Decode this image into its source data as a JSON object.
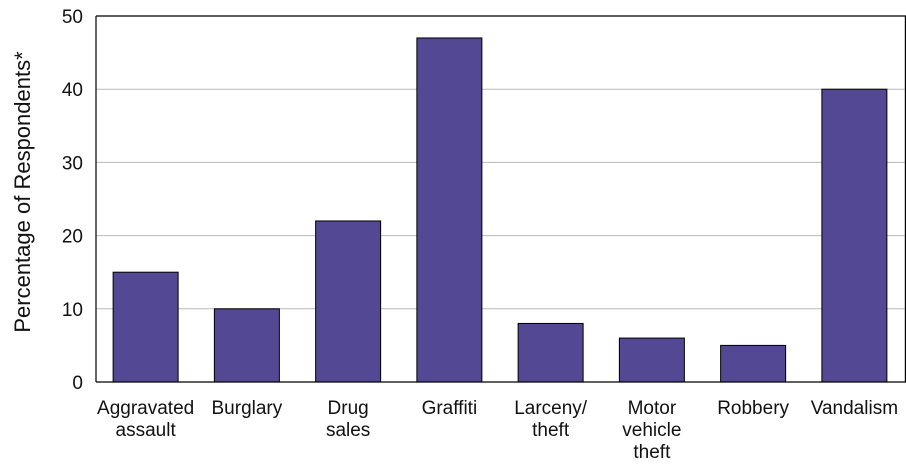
{
  "chart_data": {
    "type": "bar",
    "title": "",
    "xlabel": "",
    "ylabel": "Percentage of Respondents*",
    "ylim": [
      0,
      50
    ],
    "yticks": [
      0,
      10,
      20,
      30,
      40,
      50
    ],
    "grid": true,
    "legend": "none",
    "categories": [
      [
        "Aggravated",
        "assault"
      ],
      [
        "Burglary"
      ],
      [
        "Drug",
        "sales"
      ],
      [
        "Graffiti"
      ],
      [
        "Larceny/",
        "theft"
      ],
      [
        "Motor",
        "vehicle",
        "theft"
      ],
      [
        "Robbery"
      ],
      [
        "Vandalism"
      ]
    ],
    "values": [
      15,
      10,
      22,
      47,
      8,
      6,
      5,
      40
    ],
    "colors": {
      "bar": "#524893",
      "grid": "#b9b9b9",
      "axis": "#000000"
    }
  }
}
